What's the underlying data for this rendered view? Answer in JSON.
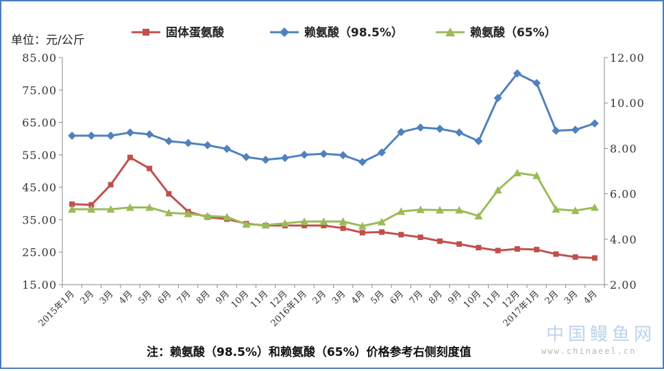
{
  "unit_label": "单位：元/公斤",
  "note": "注：赖氨酸（98.5%）和赖氨酸（65%）价格参考右侧刻度值",
  "watermark": {
    "title": "中国鳗鱼网",
    "url": "www.chinaeel.cn"
  },
  "chart_data": {
    "type": "line",
    "categories": [
      "2015年1月",
      "2月",
      "3月",
      "4月",
      "5月",
      "6月",
      "7月",
      "8月",
      "9月",
      "10月",
      "11月",
      "12月",
      "2016年1月",
      "2月",
      "3月",
      "4月",
      "5月",
      "6月",
      "7月",
      "8月",
      "9月",
      "10月",
      "11月",
      "12月",
      "2017年1月",
      "2月",
      "3月",
      "4月"
    ],
    "y_left": {
      "ticks": [
        "15.00",
        "25.00",
        "35.00",
        "45.00",
        "55.00",
        "65.00",
        "75.00",
        "85.00"
      ],
      "range": [
        15,
        85
      ]
    },
    "y_right": {
      "ticks": [
        "2.00",
        "4.00",
        "6.00",
        "8.00",
        "10.00",
        "12.00"
      ],
      "range": [
        2,
        12
      ]
    },
    "legend_position": "top",
    "series": [
      {
        "name": "固体蛋氨酸",
        "axis": "left",
        "color": "#c0504d",
        "marker": "square",
        "values": [
          39.8,
          39.6,
          45.8,
          54.2,
          50.8,
          43.0,
          37.5,
          35.8,
          35.2,
          33.8,
          33.2,
          33.2,
          33.2,
          33.2,
          32.4,
          31.0,
          31.2,
          30.4,
          29.6,
          28.4,
          27.5,
          26.4,
          25.5,
          26.0,
          25.8,
          24.4,
          23.5,
          23.2
        ]
      },
      {
        "name": "赖氨酸（98.5%）",
        "axis": "right",
        "color": "#4f81bd",
        "marker": "diamond",
        "values": [
          8.56,
          8.56,
          8.56,
          8.7,
          8.62,
          8.32,
          8.24,
          8.14,
          7.98,
          7.62,
          7.5,
          7.58,
          7.72,
          7.76,
          7.7,
          7.4,
          7.82,
          8.72,
          8.92,
          8.86,
          8.7,
          8.32,
          10.22,
          11.3,
          10.88,
          8.78,
          8.82,
          9.1
        ]
      },
      {
        "name": "赖氨酸（65%）",
        "axis": "right",
        "color": "#9bbb59",
        "marker": "triangle",
        "values": [
          5.32,
          5.32,
          5.32,
          5.4,
          5.4,
          5.16,
          5.12,
          5.02,
          4.98,
          4.66,
          4.62,
          4.7,
          4.78,
          4.78,
          4.78,
          4.58,
          4.76,
          5.22,
          5.3,
          5.28,
          5.28,
          5.02,
          6.16,
          6.92,
          6.8,
          5.32,
          5.26,
          5.4
        ]
      }
    ]
  }
}
